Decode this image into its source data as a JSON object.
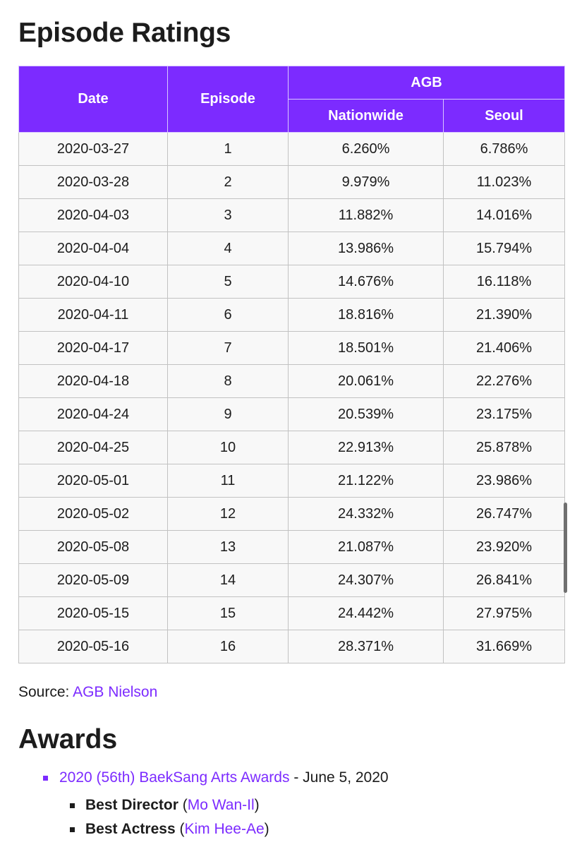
{
  "ratings_title": "Episode Ratings",
  "table": {
    "headers": {
      "date": "Date",
      "episode": "Episode",
      "agb": "AGB",
      "nationwide": "Nationwide",
      "seoul": "Seoul"
    },
    "rows": [
      [
        "2020-03-27",
        "1",
        "6.260%",
        "6.786%"
      ],
      [
        "2020-03-28",
        "2",
        "9.979%",
        "11.023%"
      ],
      [
        "2020-04-03",
        "3",
        "11.882%",
        "14.016%"
      ],
      [
        "2020-04-04",
        "4",
        "13.986%",
        "15.794%"
      ],
      [
        "2020-04-10",
        "5",
        "14.676%",
        "16.118%"
      ],
      [
        "2020-04-11",
        "6",
        "18.816%",
        "21.390%"
      ],
      [
        "2020-04-17",
        "7",
        "18.501%",
        "21.406%"
      ],
      [
        "2020-04-18",
        "8",
        "20.061%",
        "22.276%"
      ],
      [
        "2020-04-24",
        "9",
        "20.539%",
        "23.175%"
      ],
      [
        "2020-04-25",
        "10",
        "22.913%",
        "25.878%"
      ],
      [
        "2020-05-01",
        "11",
        "21.122%",
        "23.986%"
      ],
      [
        "2020-05-02",
        "12",
        "24.332%",
        "26.747%"
      ],
      [
        "2020-05-08",
        "13",
        "21.087%",
        "23.920%"
      ],
      [
        "2020-05-09",
        "14",
        "24.307%",
        "26.841%"
      ],
      [
        "2020-05-15",
        "15",
        "24.442%",
        "27.975%"
      ],
      [
        "2020-05-16",
        "16",
        "28.371%",
        "31.669%"
      ]
    ]
  },
  "source": {
    "label": "Source: ",
    "link_text": "AGB Nielson"
  },
  "awards_title": "Awards",
  "awards": {
    "event_link": "2020 (56th) BaekSang Arts Awards",
    "event_date": " - June 5, 2020",
    "items": [
      {
        "category": "Best Director",
        "open": " (",
        "person": "Mo Wan-Il",
        "close": ")"
      },
      {
        "category": "Best Actress",
        "open": " (",
        "person": "Kim Hee-Ae",
        "close": ")"
      }
    ]
  },
  "colors": {
    "accent": "#7c2bff",
    "cell_bg": "#f8f8f8",
    "text": "#1c1c1c"
  }
}
